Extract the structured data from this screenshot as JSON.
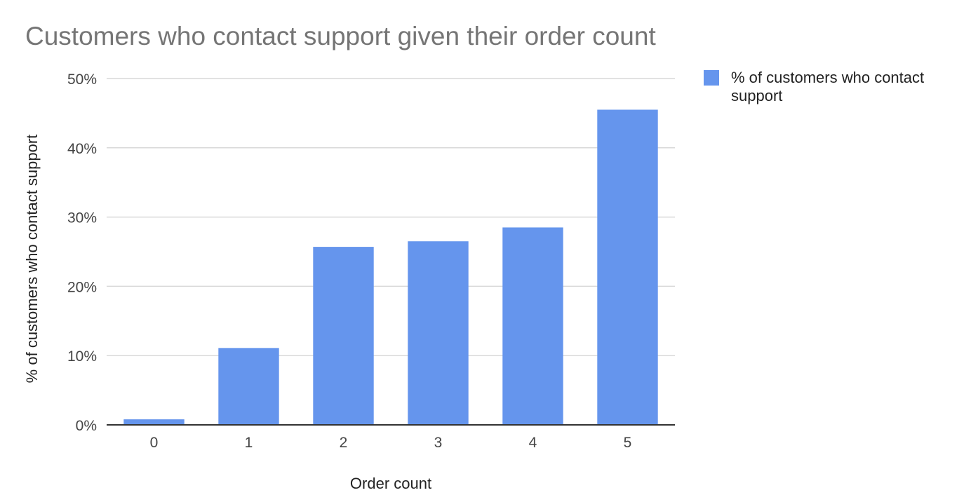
{
  "chart_data": {
    "type": "bar",
    "title": "Customers who contact support given their order count",
    "xlabel": "Order count",
    "ylabel": "% of customers who contact support",
    "categories": [
      "0",
      "1",
      "2",
      "3",
      "4",
      "5"
    ],
    "series": [
      {
        "name": "% of customers who contact support",
        "values": [
          0.8,
          11.1,
          25.7,
          26.5,
          28.5,
          45.5
        ],
        "color": "#6595ed"
      }
    ],
    "ylim": [
      0,
      50
    ],
    "yticks": [
      0,
      10,
      20,
      30,
      40,
      50
    ],
    "ytick_labels": [
      "0%",
      "10%",
      "20%",
      "30%",
      "40%",
      "50%"
    ],
    "grid": true,
    "legend_position": "right"
  }
}
